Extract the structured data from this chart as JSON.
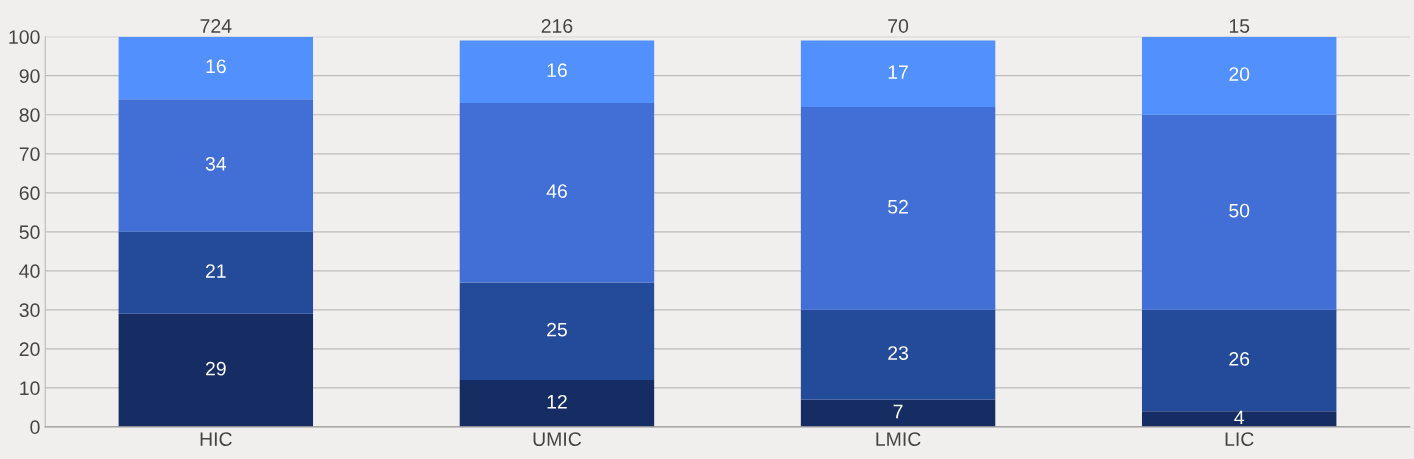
{
  "chart_data": {
    "type": "bar",
    "stacked": true,
    "categories": [
      "HIC",
      "UMIC",
      "LMIC",
      "LIC"
    ],
    "series": [
      {
        "color": "#162d64",
        "values": [
          29,
          12,
          7,
          4
        ]
      },
      {
        "color": "#244a9a",
        "values": [
          21,
          25,
          23,
          26
        ]
      },
      {
        "color": "#416fd6",
        "values": [
          34,
          46,
          52,
          50
        ]
      },
      {
        "color": "#5190fd",
        "values": [
          16,
          16,
          17,
          20
        ]
      }
    ],
    "ylim": [
      0,
      100
    ],
    "yticks": [
      0,
      10,
      20,
      30,
      40,
      50,
      60,
      70,
      80,
      90,
      100
    ],
    "grid": "y",
    "data_labels": true,
    "annotations": [
      {
        "text": "724",
        "x": "HIC",
        "y": 100
      },
      {
        "text": "216",
        "x": "UMIC",
        "y": 100
      },
      {
        "text": "70",
        "x": "LMIC",
        "y": 100
      },
      {
        "text": "15",
        "x": "LIC",
        "y": 100
      }
    ]
  }
}
